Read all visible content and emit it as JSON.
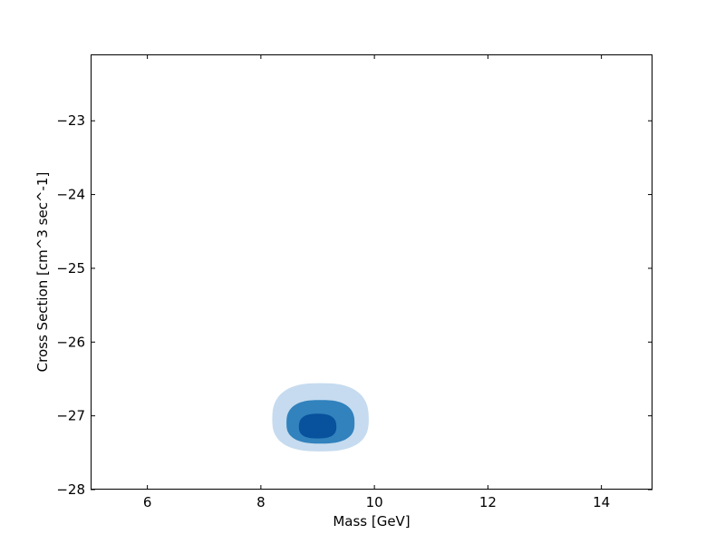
{
  "chart_data": {
    "type": "contour",
    "title": "",
    "xlabel": "Mass [GeV]",
    "ylabel": "Cross Section [cm^3 sec^-1]",
    "xlim": [
      5,
      14.9
    ],
    "ylim": [
      -28,
      -22.1
    ],
    "x_ticks": [
      6,
      8,
      10,
      12,
      14
    ],
    "y_ticks": [
      -28,
      -27,
      -26,
      -25,
      -24,
      -23
    ],
    "x_tick_labels": [
      "6",
      "8",
      "10",
      "12",
      "14"
    ],
    "y_tick_labels": [
      "−28",
      "−27",
      "−26",
      "−25",
      "−24",
      "−23"
    ],
    "grid": false,
    "levels": [
      {
        "name": "outer",
        "color": "#c6dbef",
        "center": [
          9.05,
          -27.05
        ],
        "half_width": [
          0.85,
          0.47
        ]
      },
      {
        "name": "middle",
        "color": "#3182bd",
        "center": [
          9.05,
          -27.1
        ],
        "half_width": [
          0.6,
          0.3
        ]
      },
      {
        "name": "inner",
        "color": "#08519c",
        "center": [
          9.0,
          -27.15
        ],
        "half_width": [
          0.33,
          0.17
        ]
      }
    ]
  }
}
